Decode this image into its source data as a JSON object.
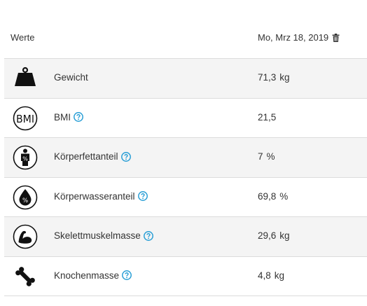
{
  "header": {
    "label": "Werte",
    "date": "Mo, Mrz 18, 2019"
  },
  "rows": [
    {
      "name": "Gewicht",
      "value": "71,3",
      "unit": "kg",
      "icon": "weight-icon",
      "help": false
    },
    {
      "name": "BMI",
      "value": "21,5",
      "unit": "",
      "icon": "bmi-icon",
      "help": true
    },
    {
      "name": "Körperfettanteil",
      "value": "7",
      "unit": "%",
      "icon": "body-fat-icon",
      "help": true
    },
    {
      "name": "Körperwasseranteil",
      "value": "69,8",
      "unit": "%",
      "icon": "body-water-icon",
      "help": true
    },
    {
      "name": "Skelettmuskelmasse",
      "value": "29,6",
      "unit": "kg",
      "icon": "muscle-icon",
      "help": true
    },
    {
      "name": "Knochenmasse",
      "value": "4,8",
      "unit": "kg",
      "icon": "bone-icon",
      "help": true
    }
  ],
  "colors": {
    "help": "#2a9fd6",
    "text": "#333333",
    "row_shade": "#f4f4f4",
    "border": "#dcdcdc"
  },
  "icons": {
    "header_action": "trash-icon",
    "help": "help-circle-icon"
  }
}
